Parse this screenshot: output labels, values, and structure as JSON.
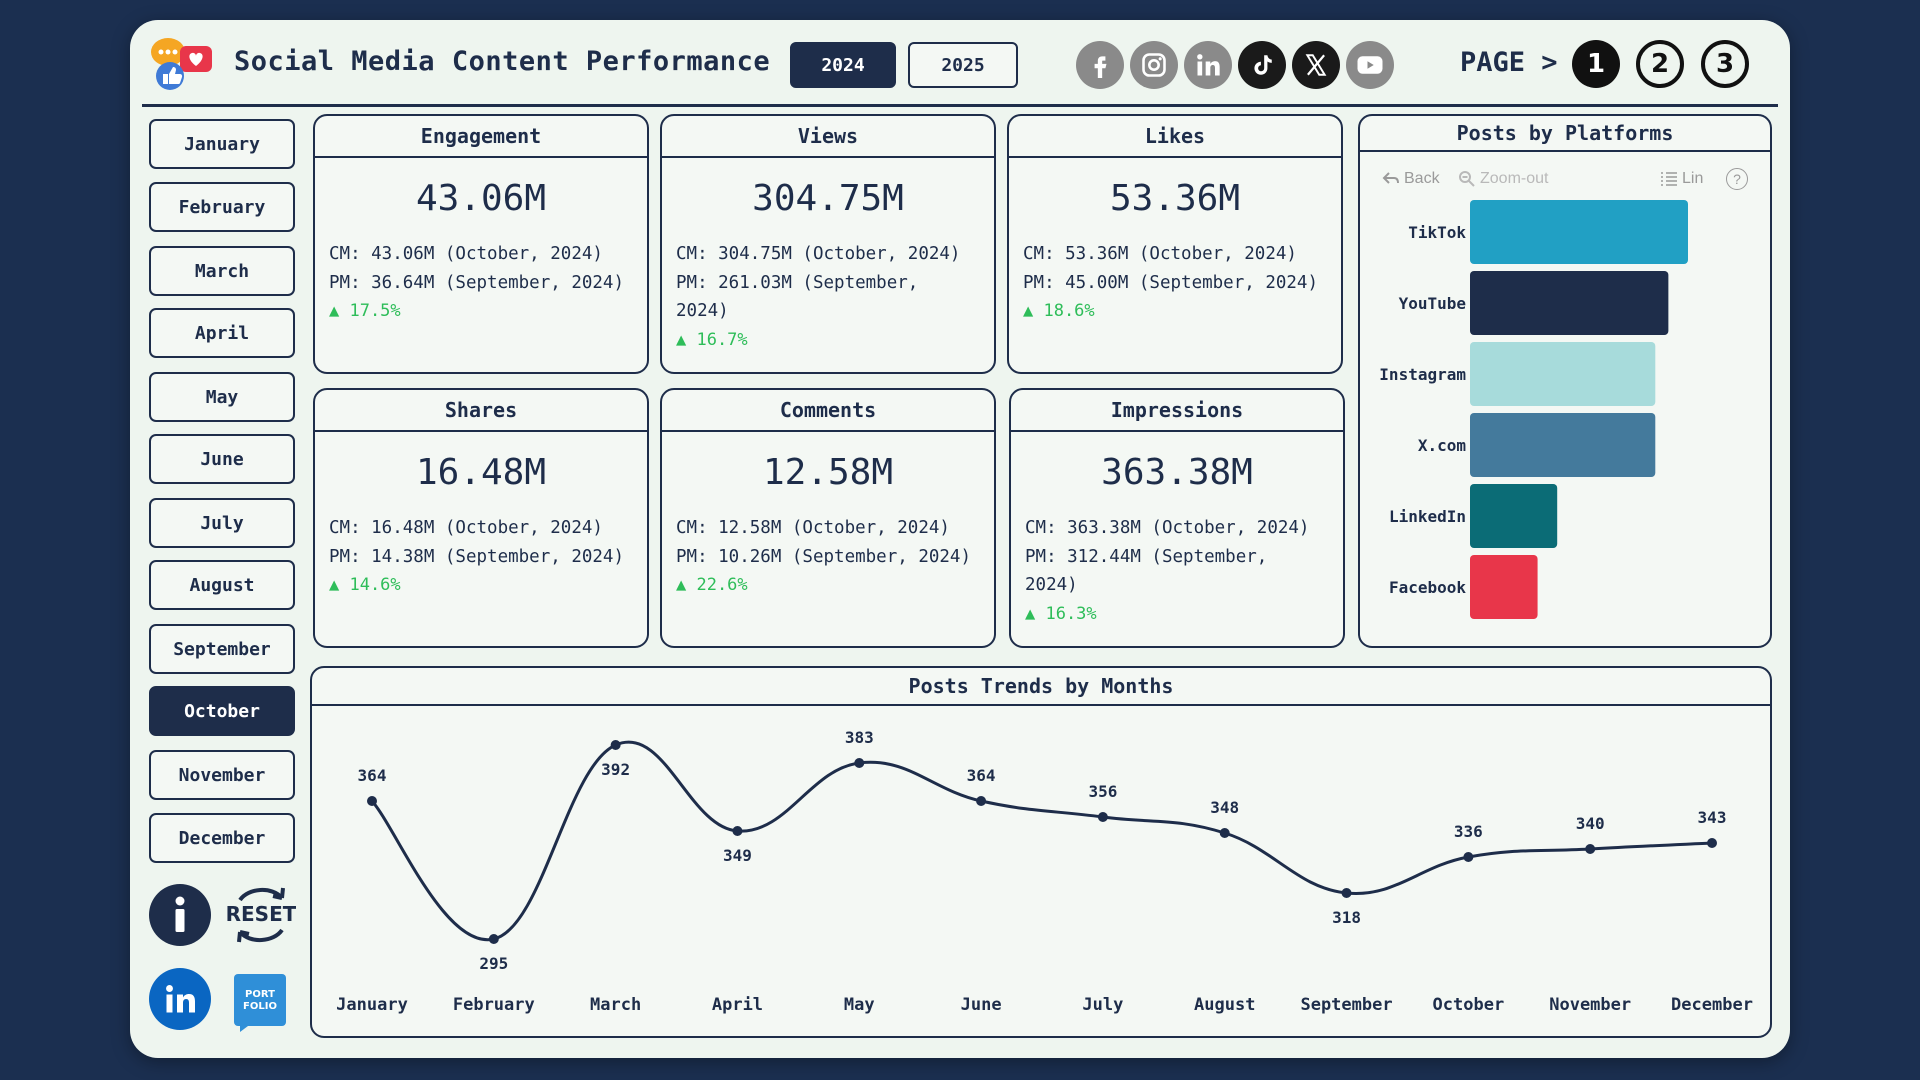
{
  "header": {
    "title": "Social Media Content Performance",
    "years": [
      {
        "label": "2024",
        "active": true
      },
      {
        "label": "2025",
        "active": false
      }
    ],
    "socials": [
      "facebook-icon",
      "instagram-icon",
      "linkedin-icon",
      "tiktok-icon",
      "x-icon",
      "youtube-icon"
    ],
    "page_label": "PAGE >",
    "pages": [
      {
        "label": "1",
        "active": true
      },
      {
        "label": "2",
        "active": false
      },
      {
        "label": "3",
        "active": false
      }
    ]
  },
  "months": [
    "January",
    "February",
    "March",
    "April",
    "May",
    "June",
    "July",
    "August",
    "September",
    "October",
    "November",
    "December"
  ],
  "selected_month": "October",
  "cards": [
    {
      "title": "Engagement",
      "value": "43.06M",
      "cm": "CM: 43.06M (October, 2024)",
      "pm": "PM: 36.64M (September, 2024)",
      "delta": "▲ 17.5%"
    },
    {
      "title": "Views",
      "value": "304.75M",
      "cm": "CM: 304.75M (October, 2024)",
      "pm": "PM: 261.03M (September, 2024)",
      "delta": "▲ 16.7%"
    },
    {
      "title": "Likes",
      "value": "53.36M",
      "cm": "CM: 53.36M (October, 2024)",
      "pm": "PM: 45.00M (September, 2024)",
      "delta": "▲ 18.6%"
    },
    {
      "title": "Shares",
      "value": "16.48M",
      "cm": "CM: 16.48M (October, 2024)",
      "pm": "PM: 14.38M (September, 2024)",
      "delta": "▲ 14.6%"
    },
    {
      "title": "Comments",
      "value": "12.58M",
      "cm": "CM: 12.58M (October, 2024)",
      "pm": "PM: 10.26M (September, 2024)",
      "delta": "▲ 22.6%"
    },
    {
      "title": "Impressions",
      "value": "363.38M",
      "cm": "CM: 363.38M (October, 2024)",
      "pm": "PM: 312.44M (September, 2024)",
      "delta": "▲ 16.3%"
    }
  ],
  "platforms_panel": {
    "title": "Posts by Platforms",
    "toolbar": {
      "back": "Back",
      "zoom_out": "Zoom-out",
      "lin": "Lin",
      "help": "?"
    }
  },
  "trend_panel": {
    "title": "Posts Trends by Months"
  },
  "colors": {
    "navy": "#1e2d4a",
    "panel_bg": "#eef5ef",
    "page_bg": "#1b2f50",
    "delta_green": "#2ebd59"
  },
  "chart_data": [
    {
      "type": "bar",
      "orientation": "horizontal",
      "title": "Posts by Platforms",
      "categories": [
        "TikTok",
        "YouTube",
        "Instagram",
        "X.com",
        "LinkedIn",
        "Facebook"
      ],
      "values": [
        100,
        91,
        85,
        85,
        40,
        31
      ],
      "colors": [
        "#21a0c4",
        "#1e2d4a",
        "#a7dbdb",
        "#447a9c",
        "#0b6c76",
        "#e8364a"
      ],
      "xlim": [
        0,
        100
      ],
      "show_value_labels": false
    },
    {
      "type": "line",
      "title": "Posts Trends by Months",
      "categories": [
        "January",
        "February",
        "March",
        "April",
        "May",
        "June",
        "July",
        "August",
        "September",
        "October",
        "November",
        "December"
      ],
      "values": [
        364,
        295,
        392,
        349,
        383,
        364,
        356,
        348,
        318,
        336,
        340,
        343
      ],
      "label_position": [
        "above",
        "below",
        "below",
        "below",
        "above",
        "above",
        "above",
        "above",
        "below",
        "above",
        "above",
        "above"
      ],
      "ylim": [
        290,
        395
      ],
      "smooth": true
    }
  ]
}
